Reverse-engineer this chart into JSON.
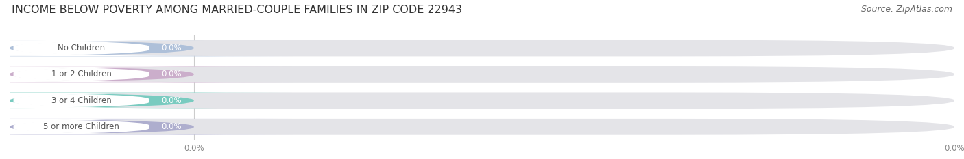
{
  "title": "INCOME BELOW POVERTY AMONG MARRIED-COUPLE FAMILIES IN ZIP CODE 22943",
  "source": "Source: ZipAtlas.com",
  "categories": [
    "No Children",
    "1 or 2 Children",
    "3 or 4 Children",
    "5 or more Children"
  ],
  "values": [
    0.0,
    0.0,
    0.0,
    0.0
  ],
  "bar_colors": [
    "#a8bcd8",
    "#c9a8c8",
    "#6ec9bc",
    "#a8a8cc"
  ],
  "background_color": "#ffffff",
  "bar_bg_color": "#e4e4e8",
  "title_fontsize": 11.5,
  "label_fontsize": 8.5,
  "value_fontsize": 8.5,
  "source_fontsize": 9,
  "white_pill_color": "#ffffff",
  "label_text_color": "#555555",
  "value_text_color": "#ffffff"
}
